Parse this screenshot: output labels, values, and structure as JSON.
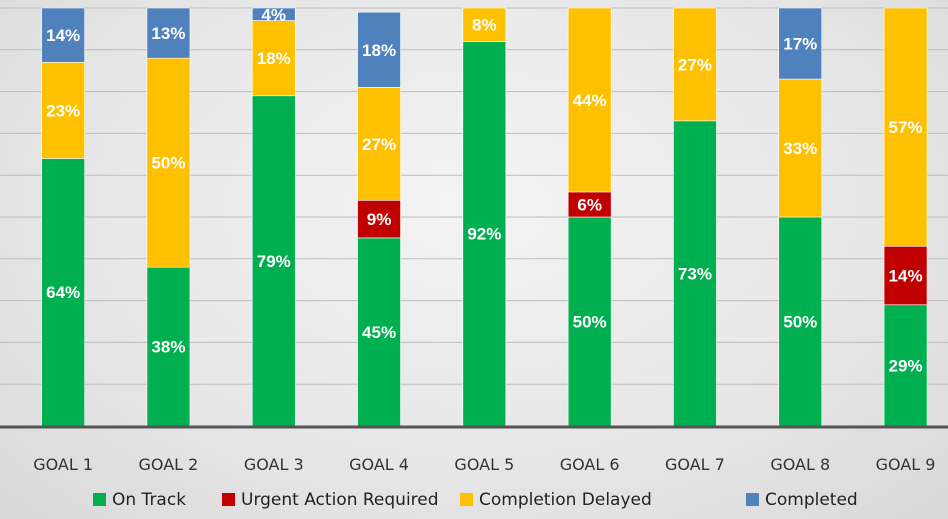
{
  "chart_data": {
    "type": "bar",
    "stacked": true,
    "categories": [
      "GOAL 1",
      "GOAL 2",
      "GOAL 3",
      "GOAL 4",
      "GOAL 5",
      "GOAL 6",
      "GOAL 7",
      "GOAL 8",
      "GOAL 9"
    ],
    "series": [
      {
        "name": "On Track",
        "color": "#00b050",
        "values": [
          64,
          38,
          79,
          45,
          92,
          50,
          73,
          50,
          29
        ]
      },
      {
        "name": "Urgent Action Required",
        "color": "#c00000",
        "values": [
          0,
          0,
          0,
          9,
          0,
          6,
          0,
          0,
          14
        ]
      },
      {
        "name": "Completion Delayed",
        "color": "#ffc000",
        "values": [
          23,
          50,
          18,
          27,
          8,
          44,
          27,
          33,
          57
        ]
      },
      {
        "name": "Completed",
        "color": "#4f81bd",
        "values": [
          14,
          13,
          4,
          18,
          0,
          0,
          0,
          17,
          0
        ]
      }
    ],
    "value_suffix": "%",
    "ylim": [
      0,
      100
    ],
    "grid": true,
    "legend": "bottom"
  }
}
